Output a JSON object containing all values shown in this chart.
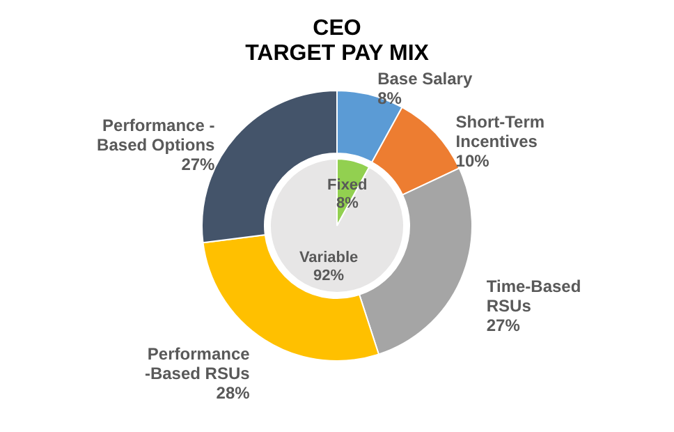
{
  "chart_data": [
    {
      "type": "donut",
      "title": "CEO\nTARGET PAY MIX",
      "categories": [
        "Base Salary",
        "Short-Term\nIncentives",
        "Time-Based\nRSUs",
        "Performance\n-Based RSUs",
        "Performance -\nBased Options"
      ],
      "values": [
        8,
        10,
        27,
        28,
        27
      ],
      "value_labels": [
        "8%",
        "10%",
        "27%",
        "28%",
        "27%"
      ],
      "colors": [
        "#5b9bd5",
        "#ed7d31",
        "#a5a5a5",
        "#ffc000",
        "#44546a"
      ]
    },
    {
      "type": "pie",
      "categories": [
        "Fixed",
        "Variable"
      ],
      "values": [
        8,
        92
      ],
      "value_labels": [
        "8%",
        "92%"
      ],
      "colors": [
        "#92d050",
        "#e7e6e6"
      ]
    }
  ]
}
